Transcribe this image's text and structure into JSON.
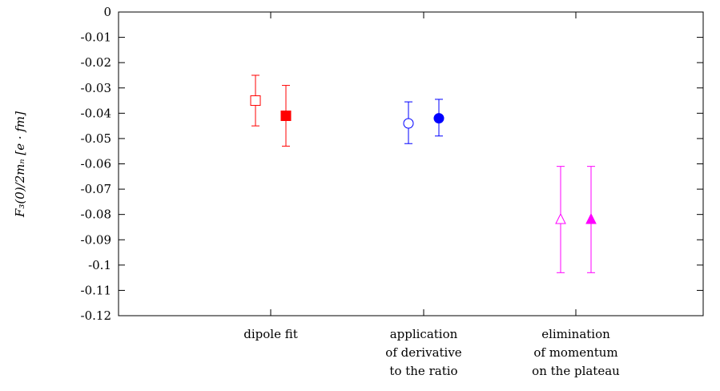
{
  "chart_data": {
    "type": "scatter",
    "ylabel": "F₃(0)/2mₙ [e · fm]",
    "ylim": [
      -0.12,
      0
    ],
    "yticks": [
      "0",
      "-0.01",
      "-0.02",
      "-0.03",
      "-0.04",
      "-0.05",
      "-0.06",
      "-0.07",
      "-0.08",
      "-0.09",
      "-0.1",
      "-0.11",
      "-0.12"
    ],
    "ytick_values": [
      0,
      -0.01,
      -0.02,
      -0.03,
      -0.04,
      -0.05,
      -0.06,
      -0.07,
      -0.08,
      -0.09,
      -0.1,
      -0.11,
      -0.12
    ],
    "categories": [
      [
        "dipole fit"
      ],
      [
        "application",
        "of derivative",
        "to the ratio"
      ],
      [
        "elimination",
        "of momentum",
        "on the plateau"
      ]
    ],
    "grid": false,
    "points": [
      {
        "category": 0,
        "offset": -1,
        "y": -0.035,
        "err_low": -0.045,
        "err_high": -0.025,
        "marker": "square",
        "filled": false,
        "color": "#ff0000"
      },
      {
        "category": 0,
        "offset": 1,
        "y": -0.041,
        "err_low": -0.053,
        "err_high": -0.029,
        "marker": "square",
        "filled": true,
        "color": "#ff0000"
      },
      {
        "category": 1,
        "offset": -1,
        "y": -0.044,
        "err_low": -0.052,
        "err_high": -0.0355,
        "marker": "circle",
        "filled": false,
        "color": "#0000ff"
      },
      {
        "category": 1,
        "offset": 1,
        "y": -0.042,
        "err_low": -0.049,
        "err_high": -0.0345,
        "marker": "circle",
        "filled": true,
        "color": "#0000ff"
      },
      {
        "category": 2,
        "offset": -1,
        "y": -0.082,
        "err_low": -0.103,
        "err_high": -0.061,
        "marker": "triangle",
        "filled": false,
        "color": "#ff00ff"
      },
      {
        "category": 2,
        "offset": 1,
        "y": -0.082,
        "err_low": -0.103,
        "err_high": -0.061,
        "marker": "triangle",
        "filled": true,
        "color": "#ff00ff"
      }
    ]
  }
}
